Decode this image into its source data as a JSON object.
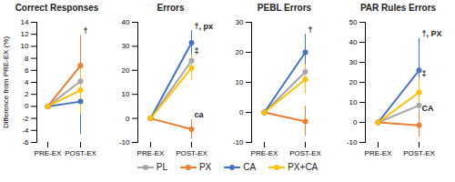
{
  "chart_data": [
    {
      "type": "line",
      "title": "Correct Responses",
      "y_label": "Difference from PRE-EX (%)",
      "categories": [
        "PRE-EX",
        "POST-EX"
      ],
      "ylim": [
        -6,
        14
      ],
      "yticks": [
        -6,
        -4,
        -2,
        0,
        2,
        4,
        6,
        8,
        10,
        12,
        14
      ],
      "legend": "bottom",
      "series": [
        {
          "name": "PL",
          "color": "#a6a6a6",
          "values": [
            0,
            4.2
          ],
          "errors": [
            null,
            7
          ]
        },
        {
          "name": "PX",
          "color": "#ed7d31",
          "values": [
            0,
            6.8
          ],
          "errors": [
            null,
            5
          ]
        },
        {
          "name": "CA",
          "color": "#4472c4",
          "values": [
            0,
            0.8
          ],
          "errors": [
            null,
            5.5
          ]
        },
        {
          "name": "PX+CA",
          "color": "#ffc000",
          "values": [
            0,
            2.7
          ],
          "errors": [
            null,
            4
          ]
        }
      ],
      "annotations": [
        {
          "series": "PX",
          "text": "†"
        }
      ]
    },
    {
      "type": "line",
      "title": "Errors",
      "categories": [
        "PRE-EX",
        "POST-EX"
      ],
      "ylim": [
        -10,
        40
      ],
      "yticks": [
        -10,
        0,
        10,
        20,
        30,
        40
      ],
      "legend": "bottom",
      "series": [
        {
          "name": "PL",
          "color": "#a6a6a6",
          "values": [
            0,
            24
          ],
          "errors": [
            null,
            4
          ]
        },
        {
          "name": "PX",
          "color": "#ed7d31",
          "values": [
            0,
            -4.5
          ],
          "errors": [
            null,
            4
          ]
        },
        {
          "name": "CA",
          "color": "#4472c4",
          "values": [
            0,
            31.5
          ],
          "errors": [
            null,
            5
          ]
        },
        {
          "name": "PX+CA",
          "color": "#ffc000",
          "values": [
            0,
            21
          ],
          "errors": [
            null,
            5
          ]
        }
      ],
      "annotations": [
        {
          "series": "CA",
          "text": "†, px"
        },
        {
          "series": "PX+CA",
          "text": "‡"
        },
        {
          "series": "PX",
          "text": "ca"
        }
      ]
    },
    {
      "type": "line",
      "title": "PEBL Errors",
      "categories": [
        "PRE-EX",
        "POST-EX"
      ],
      "ylim": [
        -10,
        30
      ],
      "yticks": [
        -10,
        0,
        10,
        20,
        30
      ],
      "legend": "bottom",
      "series": [
        {
          "name": "PL",
          "color": "#a6a6a6",
          "values": [
            0,
            13.5
          ],
          "errors": [
            null,
            6
          ]
        },
        {
          "name": "PX",
          "color": "#ed7d31",
          "values": [
            0,
            -3
          ],
          "errors": [
            null,
            5
          ]
        },
        {
          "name": "CA",
          "color": "#4472c4",
          "values": [
            0,
            20
          ],
          "errors": [
            null,
            6
          ]
        },
        {
          "name": "PX+CA",
          "color": "#ffc000",
          "values": [
            0,
            11
          ],
          "errors": [
            null,
            5
          ]
        }
      ],
      "annotations": [
        {
          "series": "CA",
          "text": "†"
        }
      ]
    },
    {
      "type": "line",
      "title": "PAR Rules Errors",
      "categories": [
        "PRE-EX",
        "POST-EX"
      ],
      "ylim": [
        -10,
        50
      ],
      "yticks": [
        -10,
        0,
        10,
        20,
        30,
        40,
        50
      ],
      "legend": "bottom",
      "series": [
        {
          "name": "PL",
          "color": "#a6a6a6",
          "values": [
            0,
            8.5
          ],
          "errors": [
            null,
            7
          ]
        },
        {
          "name": "PX",
          "color": "#ed7d31",
          "values": [
            0,
            -1.5
          ],
          "errors": [
            null,
            6
          ]
        },
        {
          "name": "CA",
          "color": "#4472c4",
          "values": [
            0,
            26
          ],
          "errors": [
            null,
            16
          ]
        },
        {
          "name": "PX+CA",
          "color": "#ffc000",
          "values": [
            0,
            15
          ],
          "errors": [
            null,
            7
          ]
        }
      ],
      "annotations": [
        {
          "series": "CA",
          "text": "†, PX"
        },
        {
          "series": "PX+CA",
          "text": "‡"
        },
        {
          "series": "PX",
          "text": "CA"
        }
      ]
    }
  ]
}
